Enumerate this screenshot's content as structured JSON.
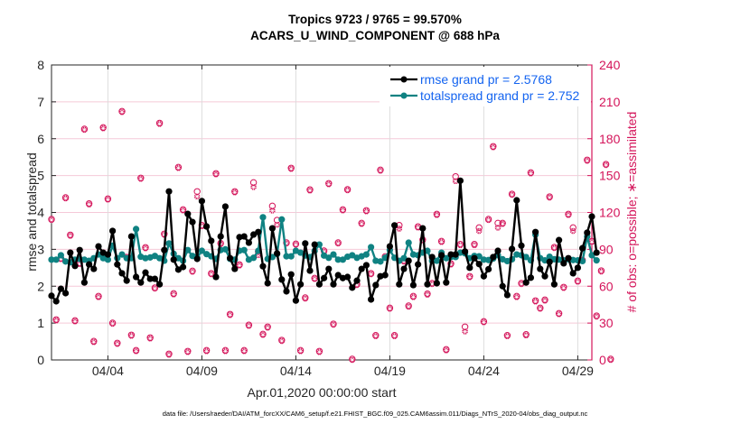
{
  "chart_data": {
    "type": "line",
    "title": "Tropics 9723 / 9765 = 99.570%",
    "subtitle": "ACARS_U_WIND_COMPONENT @ 688 hPa",
    "xlabel": "Apr.01,2020 00:00:00 start",
    "ylabel": "rmse and totalspread",
    "ylabel_right": "# of obs: o=possible; ∗=assimilated",
    "ylim": [
      0,
      8
    ],
    "ylim_right": [
      0,
      240
    ],
    "yticks": [
      "0",
      "1",
      "2",
      "3",
      "4",
      "5",
      "6",
      "7",
      "8"
    ],
    "yticks_right": [
      "0",
      "30",
      "60",
      "90",
      "120",
      "150",
      "180",
      "210",
      "240"
    ],
    "xlim_days": [
      0,
      28.75
    ],
    "xticks": [
      {
        "label": "04/04",
        "day": 3
      },
      {
        "label": "04/09",
        "day": 8
      },
      {
        "label": "04/14",
        "day": 13
      },
      {
        "label": "04/19",
        "day": 18
      },
      {
        "label": "04/24",
        "day": 23
      },
      {
        "label": "04/29",
        "day": 28
      }
    ],
    "time_step_days": 0.25,
    "grid": true,
    "legend_position": "top-right",
    "footnote": "data file: /Users/raeder/DAI/ATM_forcXX/CAM6_setup/f.e21.FHIST_BGC.f09_025.CAM6assim.011/Diags_NTrS_2020-04/obs_diag_output.nc",
    "series": [
      {
        "name": "rmse grand pr = 2.5768",
        "color": "#000000",
        "axis": "left",
        "values": [
          1.74,
          1.59,
          1.93,
          1.81,
          2.91,
          2.55,
          2.98,
          2.1,
          2.59,
          2.47,
          3.08,
          2.91,
          2.86,
          3.5,
          2.59,
          2.35,
          2.15,
          3.35,
          2.25,
          2.1,
          2.37,
          2.2,
          2.2,
          2.05,
          2.98,
          4.57,
          2.72,
          2.45,
          2.52,
          3.96,
          3.74,
          2.74,
          4.31,
          3.62,
          3.23,
          2.25,
          3.35,
          4.16,
          2.76,
          2.47,
          3.33,
          3.35,
          3.18,
          3.4,
          3.47,
          2.54,
          2.08,
          3.57,
          2.89,
          2.18,
          1.86,
          2.32,
          1.61,
          2.05,
          3.16,
          2.42,
          3.13,
          2.05,
          2.22,
          2.47,
          2.05,
          2.3,
          2.22,
          2.25,
          1.96,
          2.15,
          2.47,
          2.57,
          1.64,
          2.03,
          2.27,
          2.3,
          3.08,
          3.65,
          2.05,
          2.47,
          2.69,
          2.03,
          2.59,
          3.57,
          2.05,
          2.79,
          2.08,
          2.84,
          2.1,
          2.86,
          2.86,
          4.86,
          2.94,
          2.5,
          2.76,
          2.6,
          2.27,
          2.46,
          2.79,
          2.96,
          2.0,
          1.76,
          3.01,
          4.33,
          3.1,
          2.1,
          2.23,
          3.47,
          2.47,
          2.27,
          2.66,
          2.05,
          3.25,
          2.62,
          2.76,
          2.35,
          2.5,
          3.03,
          3.45,
          3.89,
          2.91
        ]
      },
      {
        "name": "totalspread grand pr = 2.752",
        "color": "#0f8282",
        "axis": "left",
        "values": [
          2.72,
          2.72,
          2.84,
          2.67,
          2.65,
          2.72,
          2.74,
          2.72,
          2.69,
          2.76,
          2.86,
          2.76,
          2.72,
          3.1,
          2.76,
          2.86,
          2.76,
          2.76,
          3.55,
          2.8,
          2.76,
          2.78,
          2.82,
          2.76,
          2.69,
          3.16,
          2.88,
          2.76,
          2.69,
          2.98,
          2.82,
          2.78,
          2.96,
          2.87,
          2.81,
          2.74,
          2.98,
          3.0,
          2.74,
          2.72,
          2.96,
          2.98,
          2.72,
          2.77,
          2.96,
          3.87,
          2.74,
          2.79,
          2.87,
          3.81,
          2.81,
          2.81,
          2.96,
          2.91,
          2.83,
          2.79,
          2.96,
          3.13,
          2.83,
          2.77,
          2.86,
          2.72,
          2.72,
          2.8,
          2.84,
          2.77,
          2.81,
          2.86,
          3.06,
          2.69,
          2.67,
          2.77,
          2.98,
          2.77,
          2.69,
          2.76,
          3.18,
          2.86,
          2.84,
          2.91,
          2.96,
          2.69,
          2.69,
          2.91,
          2.76,
          2.79,
          2.79,
          2.91,
          2.89,
          2.76,
          2.82,
          2.81,
          2.72,
          2.71,
          2.75,
          2.84,
          2.73,
          2.68,
          2.73,
          2.86,
          2.84,
          2.79,
          2.7,
          3.4,
          2.76,
          2.7,
          2.8,
          2.73,
          2.72,
          2.7,
          2.73,
          2.71,
          2.7,
          2.68,
          3.35,
          2.84,
          2.7
        ]
      },
      {
        "name": "obs assimilated",
        "color": "#d4145a",
        "axis": "right",
        "marker": "asterisk",
        "values": [
          113.8,
          32.1,
          82,
          131.4,
          101,
          31.3,
          78,
          187.2,
          126.5,
          14.5,
          51.1,
          188.4,
          130.4,
          29.4,
          13,
          201.6,
          82.9,
          19.6,
          7.1,
          147.3,
          90.8,
          17.4,
          58,
          192,
          101.8,
          4.2,
          53.3,
          156.1,
          121.6,
          6.4,
          71.7,
          133,
          108.8,
          7.1,
          69.7,
          151,
          94.2,
          7.1,
          36.5,
          136.3,
          76.8,
          7.1,
          27.7,
          140.6,
          85.3,
          20.3,
          26.2,
          121.5,
          110,
          15.4,
          94.7,
          155.4,
          93.7,
          7.1,
          49.9,
          137.8,
          65.8,
          6.4,
          88.1,
          142.9,
          28.6,
          94.7,
          121.6,
          138,
          0,
          60.9,
          110.6,
          120.9,
          69.7,
          19.3,
          153.9,
          83.4,
          41.6,
          19.3,
          106.8,
          80,
          43.3,
          51.1,
          107.7,
          97.1,
          53.1,
          61.7,
          117.9,
          95.9,
          7.8,
          77.6,
          145.5,
          93.4,
          23.2,
          67.3,
          93.4,
          104.9,
          30.6,
          113.8,
          173,
          107.6,
          110.6,
          19.3,
          134.3,
          51.1,
          61.7,
          20,
          151.7,
          47.5,
          41.6,
          48.2,
          132.1,
          91,
          37.2,
          58.5,
          117.9,
          104.9,
          63.6,
          80.5,
          162,
          95.9,
          35.2,
          71.9,
          158.5,
          0
        ]
      },
      {
        "name": "obs possible",
        "color": "#d4145a",
        "axis": "right",
        "marker": "circle",
        "values": [
          113.8,
          32.1,
          82,
          131.4,
          101,
          31.3,
          78,
          187.2,
          126.5,
          14.5,
          51.1,
          188.4,
          130.4,
          29.4,
          13,
          201.6,
          82.9,
          19.6,
          7.1,
          147.3,
          90.8,
          17.4,
          58,
          192,
          101.8,
          4.2,
          53.3,
          156.1,
          121.6,
          6.4,
          71.7,
          136.3,
          108.8,
          7.1,
          69.7,
          151,
          94.2,
          7.1,
          36.5,
          136.3,
          76.8,
          7.1,
          27.7,
          143.6,
          87.3,
          20.3,
          26.2,
          124.5,
          113,
          15.4,
          94.7,
          155.4,
          93.7,
          7.1,
          49.9,
          137.8,
          65.8,
          6.4,
          88.1,
          142.9,
          28.6,
          94.7,
          121.6,
          138,
          0,
          60.9,
          110.6,
          120.9,
          69.7,
          19.3,
          153.9,
          83.4,
          41.6,
          19.3,
          108.8,
          80,
          43.3,
          51.1,
          107.7,
          97.1,
          53.1,
          61.7,
          117.9,
          95.9,
          7.8,
          77.6,
          148.5,
          93.4,
          26.2,
          67.3,
          93.4,
          106.9,
          30.6,
          113.8,
          173,
          110.6,
          110.6,
          19.3,
          134.3,
          51.1,
          61.7,
          20,
          151.7,
          47.5,
          41.6,
          48.2,
          132.1,
          91,
          37.2,
          58.5,
          117.9,
          106.9,
          63.6,
          80.5,
          162,
          95.9,
          35.2,
          71.9,
          158.5,
          0
        ]
      }
    ]
  }
}
